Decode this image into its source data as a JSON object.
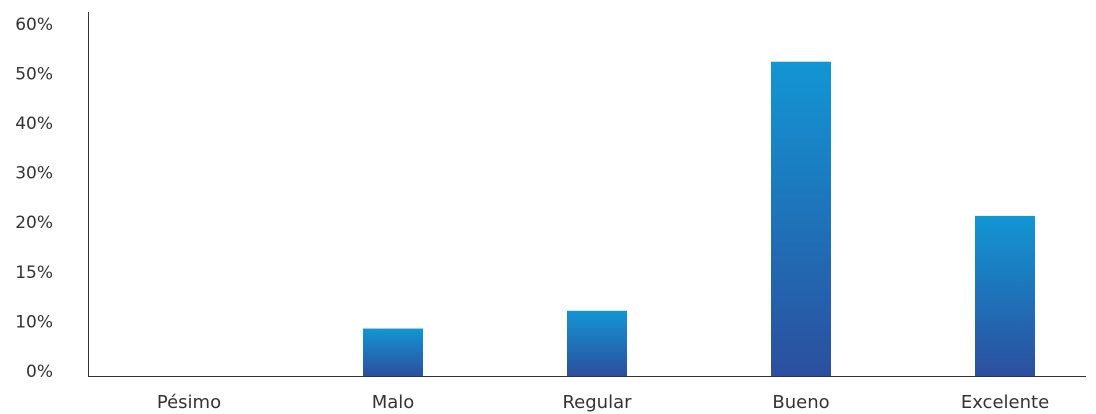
{
  "chart_data": {
    "type": "bar",
    "categories": [
      "Pésimo",
      "Malo",
      "Regular",
      "Bueno",
      "Excelente"
    ],
    "values": [
      0,
      8,
      11,
      53,
      27
    ],
    "y_tick_labels": [
      "0%",
      "10%",
      "15%",
      "20%",
      "30%",
      "40%",
      "50%",
      "60%"
    ],
    "ylim": [
      0,
      60
    ],
    "bar_gradient": {
      "top": "#1296d4",
      "bottom": "#2b4f9e"
    },
    "axis_color": "#333333",
    "grid": false,
    "legend": "none"
  }
}
